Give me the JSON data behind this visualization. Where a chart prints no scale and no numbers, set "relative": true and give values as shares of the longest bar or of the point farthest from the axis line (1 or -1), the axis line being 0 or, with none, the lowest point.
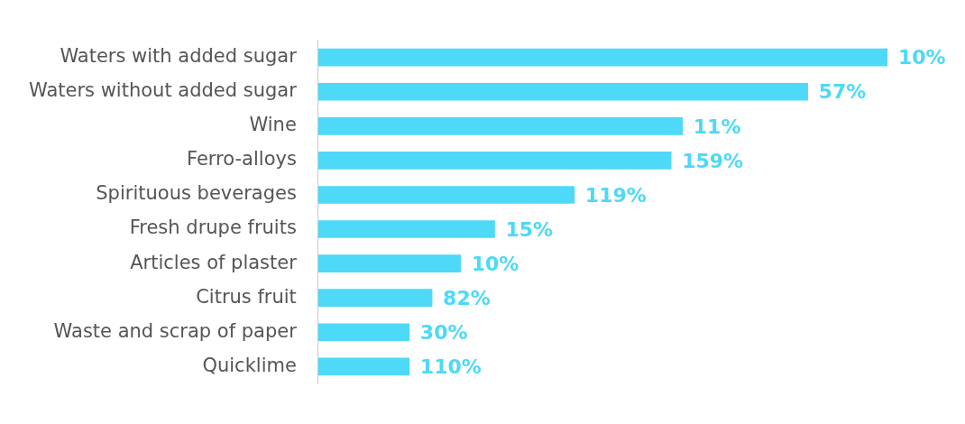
{
  "chart_data": {
    "type": "bar",
    "orientation": "horizontal",
    "relative": true,
    "categories": [
      "Waters with added sugar",
      "Waters without added sugar",
      "Wine",
      "Ferro-alloys",
      "Spirituous beverages",
      "Fresh drupe fruits",
      "Articles of plaster",
      "Citrus fruit",
      "Waste and scrap of paper",
      "Quicklime"
    ],
    "values": [
      1,
      0.86,
      0.64,
      0.62,
      0.45,
      0.31,
      0.25,
      0.2,
      0.16,
      0.16
    ],
    "color": "#4dd9f7",
    "annotations": [
      {
        "text": "10%",
        "x": 1,
        "y": "Waters with added sugar"
      },
      {
        "text": "57%",
        "x": 0.86,
        "y": "Waters without added sugar"
      },
      {
        "text": "11%",
        "x": 0.64,
        "y": "Wine"
      },
      {
        "text": "159%",
        "x": 0.62,
        "y": "Ferro-alloys"
      },
      {
        "text": "119%",
        "x": 0.45,
        "y": "Spirituous beverages"
      },
      {
        "text": "15%",
        "x": 0.31,
        "y": "Fresh drupe fruits"
      },
      {
        "text": "10%",
        "x": 0.25,
        "y": "Articles of plaster"
      },
      {
        "text": "82%",
        "x": 0.2,
        "y": "Citrus fruit"
      },
      {
        "text": "30%",
        "x": 0.16,
        "y": "Waste and scrap of paper"
      },
      {
        "text": "110%",
        "x": 0.16,
        "y": "Quicklime"
      }
    ]
  }
}
